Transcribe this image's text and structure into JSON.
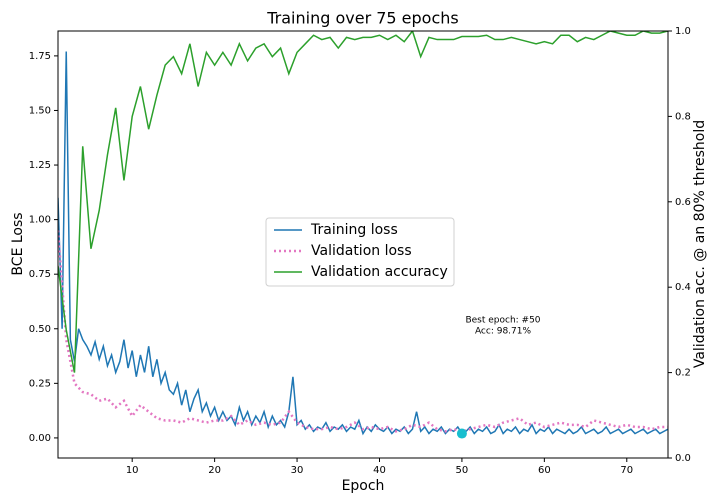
{
  "chart_data": {
    "type": "line",
    "title": "Training over 75 epochs",
    "x_label": "Epoch",
    "y_label": "BCE Loss",
    "y2_label": "Validation acc. @ an 80% threshold",
    "xlim": [
      1,
      75
    ],
    "xticks": [
      10,
      20,
      30,
      40,
      50,
      60,
      70
    ],
    "ylim": [
      -0.092,
      1.864
    ],
    "yticks": [
      {
        "value": 0,
        "label": "0.00"
      },
      {
        "value": 0.25,
        "label": "0.25"
      },
      {
        "value": 0.5,
        "label": "0.50"
      },
      {
        "value": 0.75,
        "label": "0.75"
      },
      {
        "value": 1,
        "label": "1.00"
      },
      {
        "value": 1.25,
        "label": "1.25"
      },
      {
        "value": 1.5,
        "label": "1.50"
      },
      {
        "value": 1.75,
        "label": "1.75"
      }
    ],
    "y2lim": [
      0,
      1
    ],
    "y2ticks": [
      {
        "value": 0,
        "label": "0.0"
      },
      {
        "value": 0.2,
        "label": "0.2"
      },
      {
        "value": 0.4,
        "label": "0.4"
      },
      {
        "value": 0.6,
        "label": "0.6"
      },
      {
        "value": 0.8,
        "label": "0.8"
      },
      {
        "value": 1,
        "label": "1.0"
      }
    ],
    "legend": "center",
    "x": [
      1,
      2,
      3,
      4,
      5,
      6,
      7,
      8,
      9,
      10,
      11,
      12,
      13,
      14,
      15,
      16,
      17,
      18,
      19,
      20,
      21,
      22,
      23,
      24,
      25,
      26,
      27,
      28,
      29,
      30,
      31,
      32,
      33,
      34,
      35,
      36,
      37,
      38,
      39,
      40,
      41,
      42,
      43,
      44,
      45,
      46,
      47,
      48,
      49,
      50,
      51,
      52,
      53,
      54,
      55,
      56,
      57,
      58,
      59,
      60,
      61,
      62,
      63,
      64,
      65,
      66,
      67,
      68,
      69,
      70,
      71,
      72,
      73,
      74,
      75
    ],
    "series": [
      {
        "name": "Training loss",
        "color": "#1f77b4",
        "style": "solid",
        "x": [
          1,
          1.5,
          2,
          2.5,
          3,
          3.5,
          4,
          4.5,
          5,
          5.5,
          6,
          6.5,
          7,
          7.5,
          8,
          8.5,
          9,
          9.5,
          10,
          10.5,
          11,
          11.5,
          12,
          12.5,
          13,
          13.5,
          14,
          14.5,
          15,
          15.5,
          16,
          16.5,
          17,
          17.5,
          18,
          18.5,
          19,
          19.5,
          20,
          20.5,
          21,
          21.5,
          22,
          22.5,
          23,
          23.5,
          24,
          24.5,
          25,
          25.5,
          26,
          26.5,
          27,
          27.5,
          28,
          28.5,
          29,
          29.5,
          30,
          30.5,
          31,
          31.5,
          32,
          32.5,
          33,
          33.5,
          34,
          34.5,
          35,
          35.5,
          36,
          36.5,
          37,
          37.5,
          38,
          38.5,
          39,
          39.5,
          40,
          40.5,
          41,
          41.5,
          42,
          42.5,
          43,
          43.5,
          44,
          44.5,
          45,
          45.5,
          46,
          46.5,
          47,
          47.5,
          48,
          48.5,
          49,
          49.5,
          50,
          50.5,
          51,
          51.5,
          52,
          52.5,
          53,
          53.5,
          54,
          54.5,
          55,
          55.5,
          56,
          56.5,
          57,
          57.5,
          58,
          58.5,
          59,
          59.5,
          60,
          60.5,
          61,
          61.5,
          62,
          62.5,
          63,
          63.5,
          64,
          64.5,
          65,
          65.5,
          66,
          66.5,
          67,
          67.5,
          68,
          68.5,
          69,
          69.5,
          70,
          70.5,
          71,
          71.5,
          72,
          72.5,
          73,
          73.5,
          74,
          74.5,
          75
        ],
        "values": [
          1.1,
          0.5,
          1.77,
          0.45,
          0.35,
          0.5,
          0.45,
          0.42,
          0.38,
          0.44,
          0.36,
          0.42,
          0.33,
          0.38,
          0.3,
          0.35,
          0.45,
          0.32,
          0.4,
          0.28,
          0.38,
          0.3,
          0.42,
          0.28,
          0.36,
          0.25,
          0.3,
          0.22,
          0.2,
          0.25,
          0.15,
          0.22,
          0.12,
          0.18,
          0.22,
          0.12,
          0.16,
          0.1,
          0.14,
          0.08,
          0.12,
          0.08,
          0.1,
          0.06,
          0.14,
          0.08,
          0.12,
          0.06,
          0.1,
          0.07,
          0.12,
          0.05,
          0.1,
          0.06,
          0.08,
          0.05,
          0.12,
          0.28,
          0.06,
          0.08,
          0.04,
          0.06,
          0.03,
          0.05,
          0.04,
          0.07,
          0.03,
          0.05,
          0.04,
          0.06,
          0.03,
          0.05,
          0.04,
          0.08,
          0.02,
          0.05,
          0.03,
          0.06,
          0.04,
          0.03,
          0.05,
          0.02,
          0.04,
          0.03,
          0.05,
          0.02,
          0.04,
          0.12,
          0.03,
          0.05,
          0.02,
          0.04,
          0.03,
          0.05,
          0.02,
          0.04,
          0.03,
          0.05,
          0.02,
          0.03,
          0.05,
          0.02,
          0.04,
          0.03,
          0.05,
          0.02,
          0.03,
          0.06,
          0.02,
          0.04,
          0.03,
          0.05,
          0.02,
          0.04,
          0.03,
          0.06,
          0.02,
          0.04,
          0.03,
          0.05,
          0.02,
          0.04,
          0.03,
          0.02,
          0.04,
          0.02,
          0.03,
          0.05,
          0.02,
          0.03,
          0.04,
          0.02,
          0.03,
          0.05,
          0.02,
          0.03,
          0.04,
          0.02,
          0.03,
          0.04,
          0.02,
          0.03,
          0.04,
          0.02,
          0.03,
          0.04,
          0.02,
          0.03,
          0.04
        ]
      },
      {
        "name": "Validation loss",
        "color": "#e377c2",
        "style": "dotted",
        "values": [
          0.95,
          0.45,
          0.25,
          0.21,
          0.2,
          0.17,
          0.18,
          0.14,
          0.17,
          0.1,
          0.15,
          0.12,
          0.09,
          0.08,
          0.08,
          0.07,
          0.09,
          0.08,
          0.07,
          0.08,
          0.08,
          0.1,
          0.06,
          0.08,
          0.06,
          0.07,
          0.06,
          0.07,
          0.12,
          0.07,
          0.05,
          0.04,
          0.04,
          0.05,
          0.04,
          0.05,
          0.07,
          0.04,
          0.05,
          0.04,
          0.05,
          0.03,
          0.04,
          0.06,
          0.05,
          0.07,
          0.04,
          0.03,
          0.04,
          0.03,
          0.04,
          0.05,
          0.06,
          0.05,
          0.07,
          0.08,
          0.09,
          0.06,
          0.07,
          0.05,
          0.06,
          0.07,
          0.06,
          0.06,
          0.05,
          0.08,
          0.07,
          0.06,
          0.05,
          0.06,
          0.05,
          0.05,
          0.04,
          0.05,
          0.05
        ]
      },
      {
        "name": "Validation accuracy",
        "color": "#2ca02c",
        "style": "solid",
        "axis": "y2",
        "values": [
          0.45,
          0.3,
          0.2,
          0.73,
          0.49,
          0.58,
          0.71,
          0.82,
          0.65,
          0.8,
          0.87,
          0.77,
          0.85,
          0.92,
          0.94,
          0.9,
          0.97,
          0.87,
          0.95,
          0.92,
          0.95,
          0.92,
          0.97,
          0.93,
          0.96,
          0.97,
          0.94,
          0.96,
          0.9,
          0.95,
          0.97,
          0.99,
          0.98,
          0.985,
          0.96,
          0.985,
          0.98,
          0.985,
          0.985,
          0.99,
          0.98,
          0.99,
          0.975,
          1.0,
          0.94,
          0.985,
          0.98,
          0.98,
          0.98,
          0.987,
          0.987,
          0.987,
          0.99,
          0.98,
          0.98,
          0.985,
          0.98,
          0.975,
          0.97,
          0.975,
          0.97,
          0.99,
          0.99,
          0.975,
          0.985,
          0.98,
          0.99,
          1.0,
          0.995,
          0.99,
          0.99,
          1.0,
          0.995,
          0.995,
          1.0
        ]
      }
    ],
    "best_point": {
      "x": 50,
      "y": 0.02,
      "color": "#17becf"
    },
    "annotation": [
      "Best epoch: #50",
      "Acc: 98.71%"
    ]
  }
}
